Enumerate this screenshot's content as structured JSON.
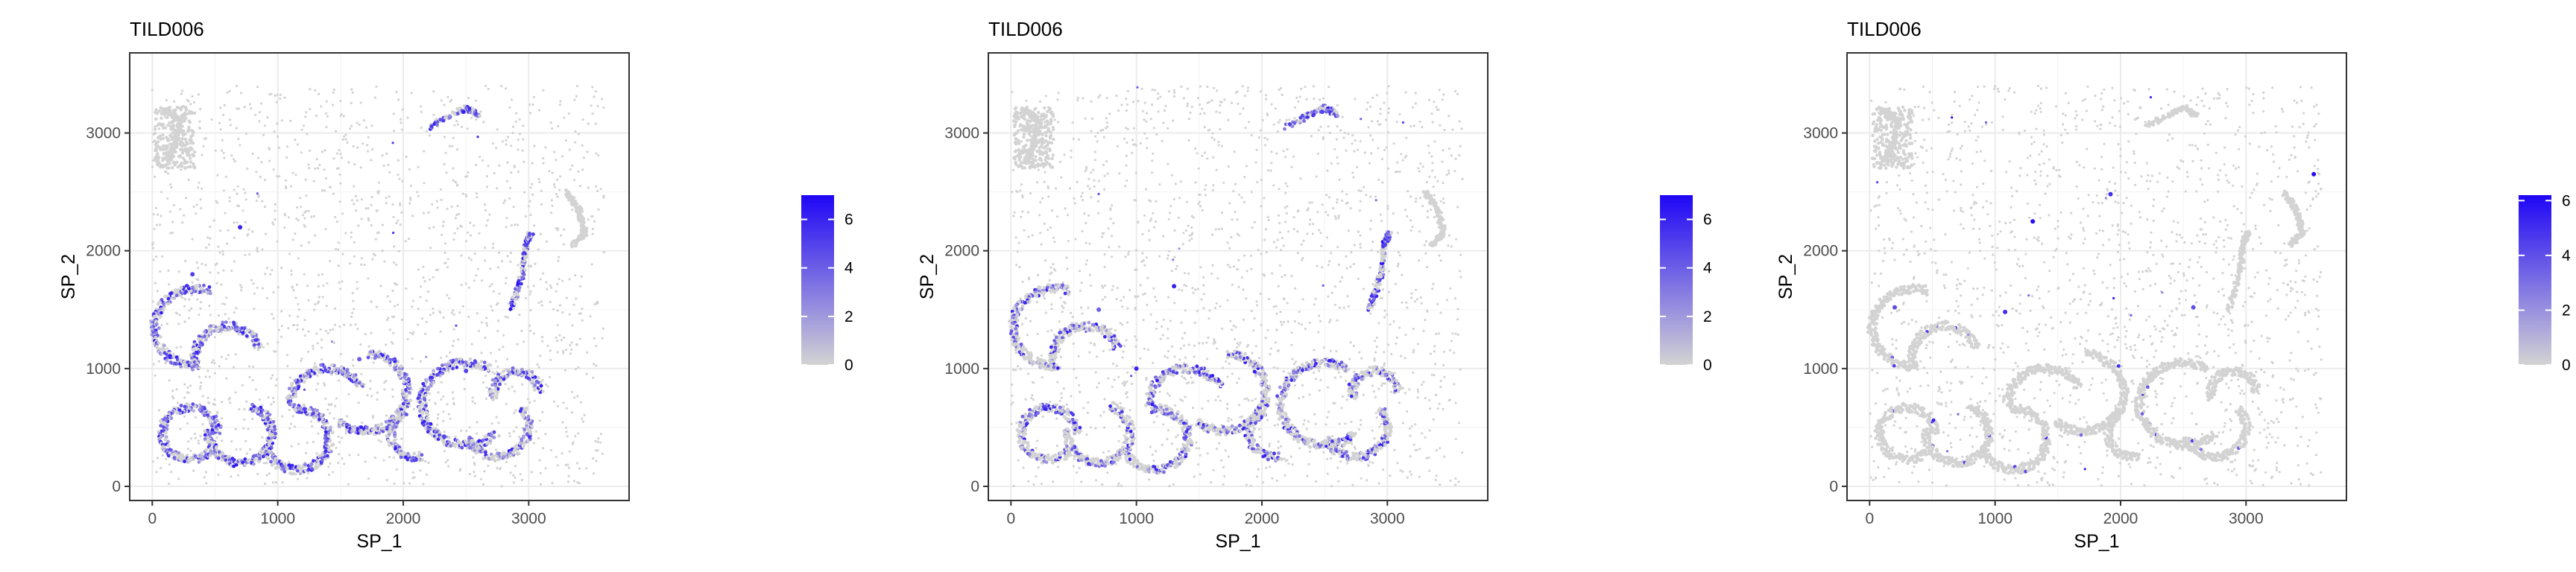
{
  "colors": {
    "low": "#d3d3d3",
    "high": "#1f06f5",
    "grid": "#ebebeb",
    "border": "#333333",
    "dot": "#cfcfcf"
  },
  "chart_data": [
    {
      "type": "scatter",
      "title": "TILD006",
      "xlabel": "SP_1",
      "ylabel": "SP_2",
      "xlim": [
        -180,
        3800
      ],
      "ylim": [
        -120,
        3680
      ],
      "x_ticks": [
        0,
        1000,
        2000,
        3000
      ],
      "x_tick_labels": [
        "0",
        "1000",
        "2000",
        "3000"
      ],
      "y_ticks": [
        0,
        1000,
        2000,
        3000
      ],
      "y_tick_labels": [
        "0",
        "1000",
        "2000",
        "3000"
      ],
      "grid": true,
      "legend": {
        "position": "right",
        "range": [
          0,
          7
        ],
        "ticks": [
          0,
          2,
          4,
          6
        ],
        "tick_labels": [
          "0",
          "2",
          "4",
          "6"
        ]
      },
      "expression_level": "high",
      "highlighted_points": [
        {
          "x": 700,
          "y": 2200,
          "value": 6
        },
        {
          "x": 320,
          "y": 1800,
          "value": 5
        },
        {
          "x": 2480,
          "y": 3180,
          "value": 6
        },
        {
          "x": 2980,
          "y": 2050,
          "value": 5
        },
        {
          "x": 1650,
          "y": 1080,
          "value": 4
        },
        {
          "x": 2500,
          "y": 980,
          "value": 5
        }
      ]
    },
    {
      "type": "scatter",
      "title": "TILD006",
      "xlabel": "SP_1",
      "ylabel": "SP_2",
      "xlim": [
        -180,
        3800
      ],
      "ylim": [
        -120,
        3680
      ],
      "x_ticks": [
        0,
        1000,
        2000,
        3000
      ],
      "x_tick_labels": [
        "0",
        "1000",
        "2000",
        "3000"
      ],
      "y_ticks": [
        0,
        1000,
        2000,
        3000
      ],
      "y_tick_labels": [
        "0",
        "1000",
        "2000",
        "3000"
      ],
      "grid": true,
      "legend": {
        "position": "right",
        "range": [
          0,
          7
        ],
        "ticks": [
          0,
          2,
          4,
          6
        ],
        "tick_labels": [
          "0",
          "2",
          "4",
          "6"
        ]
      },
      "expression_level": "medium",
      "highlighted_points": [
        {
          "x": 1300,
          "y": 1700,
          "value": 6
        },
        {
          "x": 2480,
          "y": 3180,
          "value": 5
        },
        {
          "x": 2980,
          "y": 2050,
          "value": 5
        },
        {
          "x": 1000,
          "y": 1000,
          "value": 6
        },
        {
          "x": 700,
          "y": 1500,
          "value": 4
        }
      ]
    },
    {
      "type": "scatter",
      "title": "TILD006",
      "xlabel": "SP_1",
      "ylabel": "SP_2",
      "xlim": [
        -180,
        3800
      ],
      "ylim": [
        -120,
        3680
      ],
      "x_ticks": [
        0,
        1000,
        2000,
        3000
      ],
      "x_tick_labels": [
        "0",
        "1000",
        "2000",
        "3000"
      ],
      "y_ticks": [
        0,
        1000,
        2000,
        3000
      ],
      "y_tick_labels": [
        "0",
        "1000",
        "2000",
        "3000"
      ],
      "grid": true,
      "legend": {
        "position": "right",
        "range": [
          0,
          6.2
        ],
        "ticks": [
          0,
          2,
          4,
          6
        ],
        "tick_labels": [
          "0",
          "2",
          "4",
          "6"
        ]
      },
      "expression_level": "low",
      "highlighted_points": [
        {
          "x": 1300,
          "y": 2250,
          "value": 6
        },
        {
          "x": 1920,
          "y": 2480,
          "value": 5
        },
        {
          "x": 3540,
          "y": 2650,
          "value": 6
        },
        {
          "x": 2580,
          "y": 1520,
          "value": 4
        },
        {
          "x": 1080,
          "y": 1480,
          "value": 5
        },
        {
          "x": 200,
          "y": 1520,
          "value": 4
        }
      ]
    }
  ]
}
